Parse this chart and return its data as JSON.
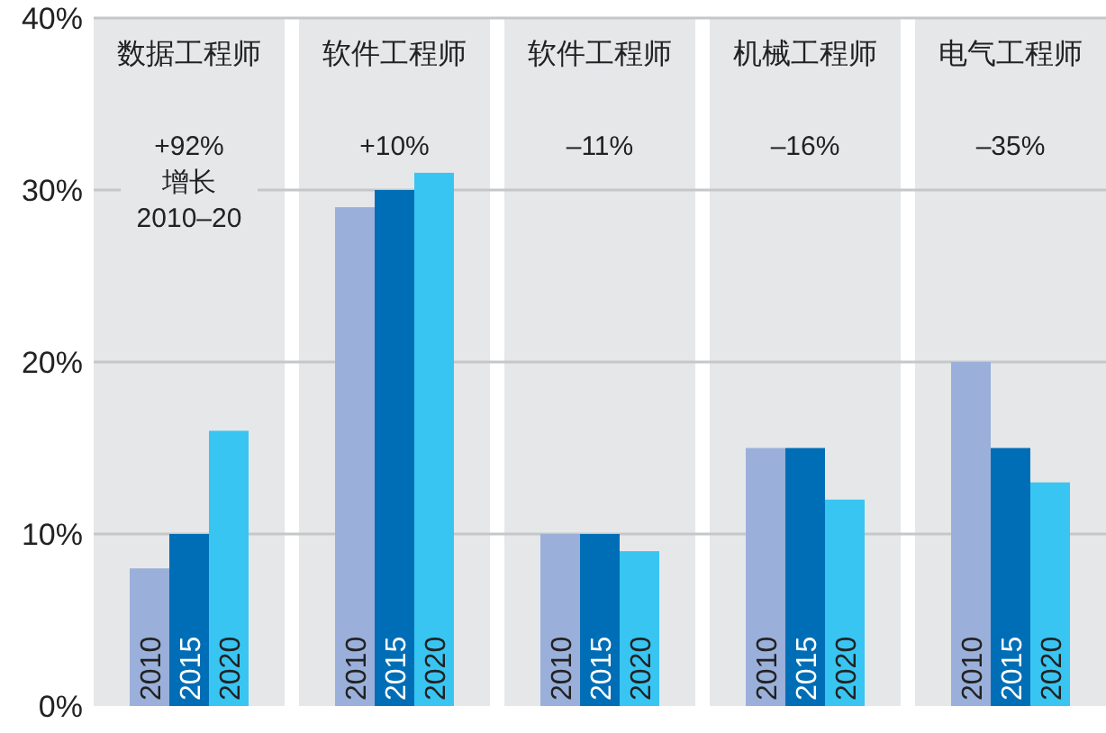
{
  "chart_data": {
    "type": "bar",
    "categories": [
      "数据工程师",
      "软件工程师",
      "软件工程师",
      "机械工程师",
      "电气工程师"
    ],
    "series": [
      {
        "name": "2010",
        "color": "#9ab0da",
        "values": [
          8,
          29,
          10,
          15,
          20
        ]
      },
      {
        "name": "2015",
        "color": "#006eb6",
        "values": [
          10,
          30,
          10,
          15,
          15
        ]
      },
      {
        "name": "2020",
        "color": "#38c5f2",
        "values": [
          16,
          31,
          9,
          12,
          13
        ]
      }
    ],
    "ylim": [
      0,
      40
    ],
    "yticks": [
      {
        "value": 0,
        "label": "0%"
      },
      {
        "value": 10,
        "label": "10%"
      },
      {
        "value": 20,
        "label": "20%"
      },
      {
        "value": 30,
        "label": "30%"
      },
      {
        "value": 40,
        "label": "40%"
      }
    ],
    "grid": "y",
    "annotations": [
      "+92%\n增长\n2010–20",
      "+10%",
      "–11%",
      "–16%",
      "–35%"
    ]
  }
}
